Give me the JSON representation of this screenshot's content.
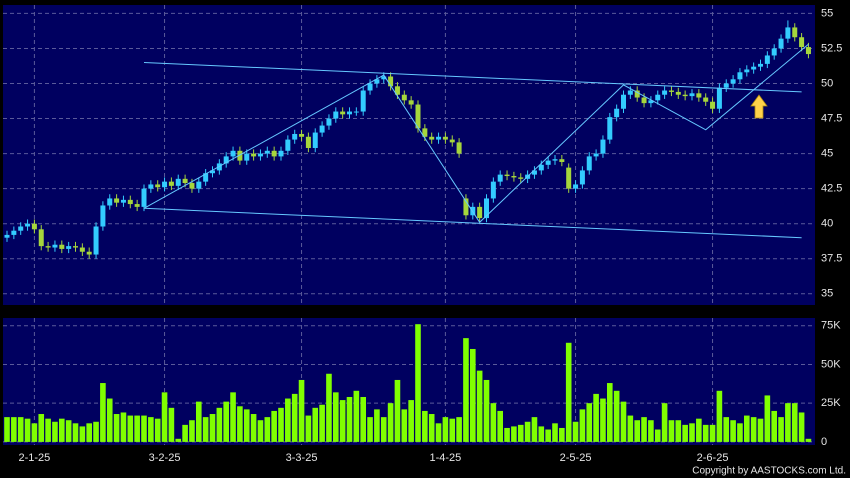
{
  "chart_data": [
    {
      "type": "candlestick",
      "up_color": "#33ccff",
      "down_color": "#a6d63c",
      "trendline_color": "#66c8ff",
      "ylim": [
        34.2,
        55.6
      ],
      "yticks": [
        55,
        52.5,
        50,
        47.5,
        45,
        42.5,
        40,
        37.5,
        35
      ],
      "grid": true,
      "open": [
        39.0,
        39.2,
        39.5,
        39.8,
        40.0,
        39.6,
        38.4,
        38.3,
        38.5,
        38.2,
        38.4,
        38.3,
        38.0,
        37.8,
        39.8,
        41.3,
        41.8,
        41.5,
        41.7,
        41.4,
        41.2,
        42.5,
        42.8,
        42.6,
        43.0,
        42.7,
        43.2,
        42.9,
        42.5,
        43.0,
        43.6,
        43.8,
        44.3,
        44.8,
        45.2,
        44.5,
        45.0,
        44.8,
        45.0,
        45.2,
        44.8,
        45.2,
        46.0,
        46.4,
        46.2,
        45.4,
        46.5,
        47.0,
        47.5,
        48.0,
        47.8,
        48.0,
        48.0,
        49.5,
        50.0,
        50.3,
        50.5,
        49.8,
        49.2,
        48.8,
        48.5,
        46.8,
        46.2,
        46.0,
        46.2,
        46.0,
        45.8,
        41.8,
        40.6,
        41.2,
        40.4,
        41.8,
        43.0,
        43.5,
        43.4,
        43.3,
        43.2,
        43.5,
        43.8,
        44.2,
        44.5,
        44.6,
        44.0,
        42.5,
        42.8,
        43.8,
        44.8,
        45.0,
        46.0,
        47.6,
        48.2,
        49.2,
        49.5,
        49.0,
        48.6,
        48.8,
        49.2,
        49.5,
        49.4,
        49.2,
        49.1,
        49.3,
        49.0,
        48.7,
        48.2,
        49.7,
        50.0,
        50.3,
        50.8,
        51.0,
        51.2,
        51.4,
        52.0,
        52.5,
        53.2,
        54.0,
        53.3,
        52.6
      ],
      "high": [
        39.5,
        39.8,
        40.1,
        40.3,
        40.3,
        39.9,
        38.7,
        38.8,
        38.8,
        38.7,
        38.7,
        38.6,
        38.3,
        40.1,
        41.6,
        42.1,
        42.1,
        42.0,
        42.0,
        41.7,
        42.8,
        43.1,
        43.1,
        43.3,
        43.3,
        43.5,
        43.5,
        43.2,
        43.3,
        43.9,
        44.1,
        44.6,
        45.1,
        45.5,
        45.5,
        45.3,
        45.3,
        45.3,
        45.5,
        45.5,
        45.5,
        46.3,
        46.7,
        46.7,
        46.5,
        46.8,
        47.3,
        47.8,
        48.3,
        48.3,
        48.3,
        48.3,
        49.8,
        50.3,
        50.6,
        50.8,
        50.8,
        50.1,
        49.5,
        49.1,
        48.8,
        47.1,
        46.5,
        46.5,
        46.5,
        46.3,
        46.1,
        42.1,
        41.5,
        41.5,
        42.1,
        43.3,
        43.8,
        43.8,
        43.7,
        43.6,
        43.8,
        44.1,
        44.5,
        44.8,
        44.9,
        44.9,
        44.3,
        43.1,
        44.1,
        45.1,
        45.3,
        46.3,
        47.9,
        48.5,
        49.5,
        49.8,
        49.8,
        49.3,
        49.1,
        49.5,
        49.8,
        49.8,
        49.7,
        49.5,
        49.6,
        49.6,
        49.3,
        49.0,
        50.0,
        50.3,
        50.6,
        51.1,
        51.3,
        51.5,
        51.7,
        52.3,
        52.8,
        53.5,
        54.5,
        54.3,
        53.6,
        52.9
      ],
      "low": [
        38.7,
        38.9,
        39.2,
        39.5,
        39.3,
        38.1,
        38.0,
        38.0,
        37.9,
        37.9,
        38.0,
        37.7,
        37.5,
        37.5,
        39.5,
        41.0,
        41.2,
        41.2,
        41.1,
        40.9,
        40.9,
        42.2,
        42.3,
        42.3,
        42.4,
        42.4,
        42.6,
        42.2,
        42.2,
        42.7,
        43.3,
        43.5,
        44.0,
        44.5,
        44.2,
        44.2,
        44.5,
        44.5,
        44.7,
        44.5,
        44.5,
        44.9,
        45.7,
        45.9,
        45.1,
        45.1,
        46.2,
        46.7,
        47.2,
        47.5,
        47.5,
        47.7,
        47.7,
        49.2,
        49.7,
        50.0,
        49.5,
        48.9,
        48.5,
        48.2,
        46.5,
        45.9,
        45.7,
        45.7,
        45.7,
        45.5,
        44.7,
        40.3,
        40.3,
        40.1,
        40.1,
        41.5,
        42.7,
        43.1,
        43.0,
        42.9,
        42.9,
        43.2,
        43.5,
        43.9,
        44.2,
        44.1,
        42.2,
        42.2,
        42.5,
        43.5,
        44.5,
        44.7,
        45.7,
        47.3,
        47.9,
        48.9,
        48.7,
        48.3,
        48.3,
        48.5,
        48.9,
        49.1,
        48.9,
        48.8,
        48.8,
        48.7,
        48.4,
        47.9,
        47.9,
        49.4,
        49.7,
        50.0,
        50.5,
        50.7,
        50.9,
        51.1,
        51.7,
        52.2,
        52.9,
        53.0,
        52.3,
        51.8
      ],
      "close": [
        39.2,
        39.5,
        39.8,
        40.0,
        39.6,
        38.4,
        38.3,
        38.5,
        38.2,
        38.4,
        38.3,
        38.0,
        37.8,
        39.8,
        41.3,
        41.8,
        41.5,
        41.7,
        41.4,
        41.2,
        42.5,
        42.8,
        42.6,
        43.0,
        42.7,
        43.2,
        42.9,
        42.5,
        43.0,
        43.6,
        43.8,
        44.3,
        44.8,
        45.2,
        44.5,
        45.0,
        44.8,
        45.0,
        45.2,
        44.8,
        45.2,
        46.0,
        46.4,
        46.2,
        45.4,
        46.5,
        47.0,
        47.5,
        48.0,
        47.8,
        48.0,
        48.0,
        49.5,
        50.0,
        50.3,
        50.5,
        49.8,
        49.2,
        48.8,
        48.5,
        46.8,
        46.2,
        46.0,
        46.2,
        46.0,
        45.8,
        45.0,
        40.6,
        41.2,
        40.4,
        41.8,
        43.0,
        43.5,
        43.4,
        43.3,
        43.2,
        43.5,
        43.8,
        44.2,
        44.5,
        44.6,
        44.4,
        42.5,
        42.8,
        43.8,
        44.8,
        45.0,
        46.0,
        47.6,
        48.2,
        49.2,
        49.5,
        49.0,
        48.6,
        48.8,
        49.2,
        49.5,
        49.4,
        49.2,
        49.1,
        49.3,
        49.0,
        48.7,
        48.2,
        49.7,
        50.0,
        50.3,
        50.8,
        51.0,
        51.2,
        51.4,
        52.0,
        52.5,
        53.2,
        54.0,
        53.3,
        52.6,
        52.1
      ],
      "trendlines": [
        {
          "x": [
            20,
            116
          ],
          "y": [
            51.5,
            49.4
          ]
        },
        {
          "x": [
            20,
            116
          ],
          "y": [
            41.1,
            39.0
          ]
        },
        {
          "x": [
            20,
            55,
            69,
            90,
            102,
            117
          ],
          "y": [
            41.1,
            50.6,
            40.1,
            49.9,
            46.7,
            52.8
          ]
        }
      ]
    },
    {
      "type": "bar",
      "color": "#80ff00",
      "ylim": [
        -2000,
        80000
      ],
      "yticks": [
        {
          "value": 75000,
          "label": "75K"
        },
        {
          "value": 50000,
          "label": "50K"
        },
        {
          "value": 25000,
          "label": "25K"
        },
        0
      ],
      "grid": true,
      "xticks": [
        {
          "value": 4,
          "label": "2-1-25"
        },
        {
          "value": 23,
          "label": "3-2-25"
        },
        {
          "value": 43,
          "label": "3-3-25"
        },
        {
          "value": 64,
          "label": "1-4-25"
        },
        {
          "value": 83,
          "label": "2-5-25"
        },
        {
          "value": 103,
          "label": "2-6-25"
        }
      ],
      "values": [
        16000,
        16000,
        16000,
        15000,
        12000,
        18000,
        15000,
        13000,
        15000,
        14000,
        12000,
        10000,
        12000,
        13000,
        38000,
        28000,
        18000,
        19000,
        17000,
        17000,
        17000,
        16000,
        15000,
        32000,
        22000,
        2000,
        11000,
        14000,
        26000,
        16000,
        18000,
        22000,
        26000,
        32000,
        23000,
        21000,
        18000,
        14000,
        16000,
        20000,
        22000,
        28000,
        31000,
        40000,
        17000,
        22000,
        24000,
        44000,
        32000,
        27000,
        29000,
        33000,
        29000,
        16000,
        21000,
        16000,
        25000,
        40000,
        21000,
        27000,
        76000,
        20000,
        18000,
        12000,
        16000,
        15000,
        16000,
        67000,
        60000,
        46000,
        40000,
        25000,
        20000,
        9000,
        10000,
        11000,
        13000,
        16000,
        10000,
        8000,
        12000,
        9000,
        64000,
        13000,
        21000,
        25000,
        31000,
        28000,
        38000,
        33000,
        26000,
        17000,
        14000,
        16000,
        14000,
        8000,
        25000,
        14000,
        14000,
        11000,
        12000,
        15000,
        11000,
        11000,
        33000,
        16000,
        14000,
        12000,
        17000,
        16000,
        15000,
        30000,
        20000,
        16000,
        25000,
        25000,
        19000,
        2000
      ]
    }
  ],
  "footer": {
    "copyright": "Copyright by AASTOCKS.com Ltd."
  }
}
